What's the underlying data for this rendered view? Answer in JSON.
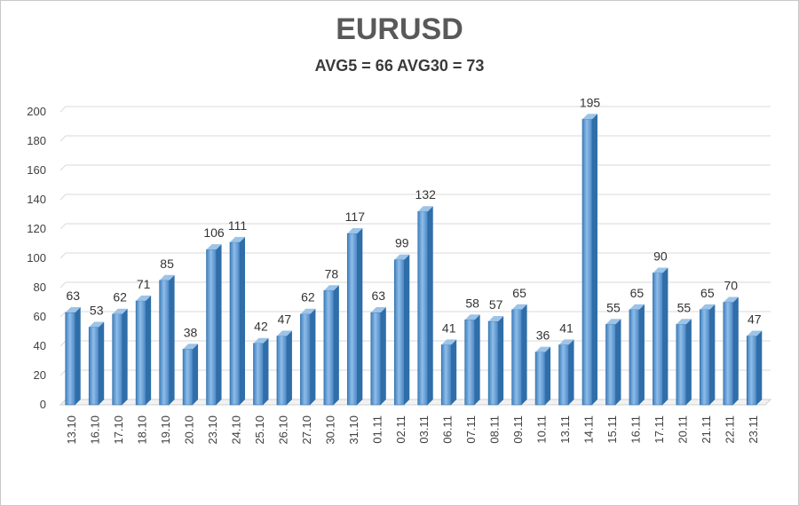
{
  "chart_data": {
    "type": "bar",
    "title": "EURUSD",
    "subtitle": "AVG5 = 66 AVG30 = 73",
    "categories": [
      "13.10",
      "16.10",
      "17.10",
      "18.10",
      "19.10",
      "20.10",
      "23.10",
      "24.10",
      "25.10",
      "26.10",
      "27.10",
      "30.10",
      "31.10",
      "01.11",
      "02.11",
      "03.11",
      "06.11",
      "07.11",
      "08.11",
      "09.11",
      "10.11",
      "13.11",
      "14.11",
      "15.11",
      "16.11",
      "17.11",
      "20.11",
      "21.11",
      "22.11",
      "23.11"
    ],
    "values": [
      63,
      53,
      62,
      71,
      85,
      38,
      106,
      111,
      42,
      47,
      62,
      78,
      117,
      63,
      99,
      132,
      41,
      58,
      57,
      65,
      36,
      41,
      195,
      55,
      65,
      90,
      55,
      65,
      70,
      47
    ],
    "ylim": [
      0,
      200
    ],
    "yticks": [
      0,
      20,
      40,
      60,
      80,
      100,
      120,
      140,
      160,
      180,
      200
    ],
    "xlabel": "",
    "ylabel": "",
    "grid": true,
    "bar_color": "#5b9bd5",
    "bar_dark": "#2f6ea8",
    "bar_light": "#9cc3e8"
  }
}
